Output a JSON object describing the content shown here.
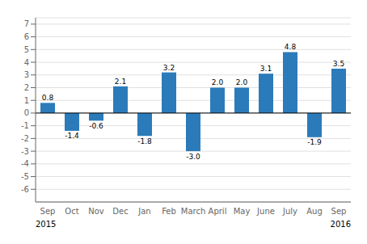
{
  "chart_data": {
    "type": "bar",
    "categories": [
      "Sep",
      "Oct",
      "Nov",
      "Dec",
      "Jan",
      "Feb",
      "March",
      "April",
      "May",
      "June",
      "July",
      "Aug",
      "Sep"
    ],
    "values": [
      0.8,
      -1.4,
      -0.6,
      2.1,
      -1.8,
      3.2,
      -3.0,
      2.0,
      2.0,
      3.1,
      4.8,
      -1.9,
      3.5
    ],
    "value_labels": [
      "0.8",
      "-1.4",
      "-0.6",
      "2.1",
      "-1.8",
      "3.2",
      "-3.0",
      "2.0",
      "2.0",
      "3.1",
      "4.8",
      "-1.9",
      "3.5"
    ],
    "color": "#2b7bba",
    "ylim": [
      -7,
      7.5
    ],
    "yticks": [
      -6,
      -5,
      -4,
      -3,
      -2,
      -1,
      0,
      1,
      2,
      3,
      4,
      5,
      6,
      7
    ],
    "grid": true,
    "data_labels": true,
    "annotations": [
      "2015",
      "2016"
    ]
  }
}
